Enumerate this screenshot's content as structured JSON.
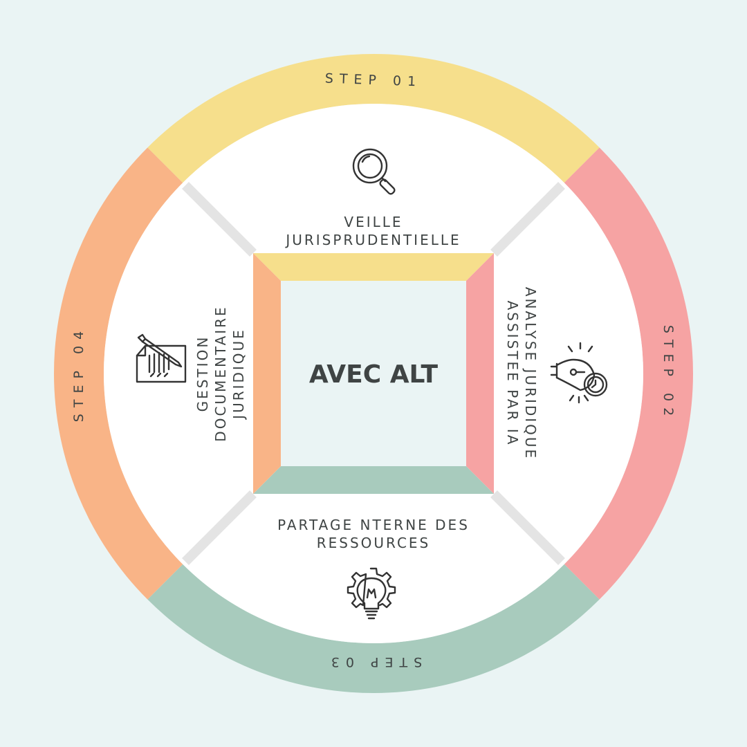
{
  "center": {
    "title": "AVEC ALT"
  },
  "steps": [
    {
      "step_label": "STEP 01",
      "title_lines": [
        "VEILLE",
        "JURISPRUDENTIELLE"
      ],
      "color": "#f6df8c",
      "icon": "magnifying-glass-icon"
    },
    {
      "step_label": "STEP 02",
      "title_lines": [
        "ANALYSE JURIDIQUE",
        "ASSISTEE PAR IA"
      ],
      "color": "#f6a3a3",
      "icon": "lightbulb-clock-icon"
    },
    {
      "step_label": "STEP 03",
      "title_lines": [
        "PARTAGE NTERNE DES",
        "RESSOURCES"
      ],
      "color": "#a8cbbd",
      "icon": "gear-lightbulb-icon"
    },
    {
      "step_label": "STEP 04",
      "title_lines": [
        "GESTION",
        "DOCUMENTAIRE",
        "JURIDIQUE"
      ],
      "color": "#f9b487",
      "icon": "document-pen-icon"
    }
  ],
  "colors": {
    "background": "#eaf4f4",
    "inner_panel": "#ffffff",
    "center_box": "#eaf4f4",
    "text": "#3f4444"
  }
}
